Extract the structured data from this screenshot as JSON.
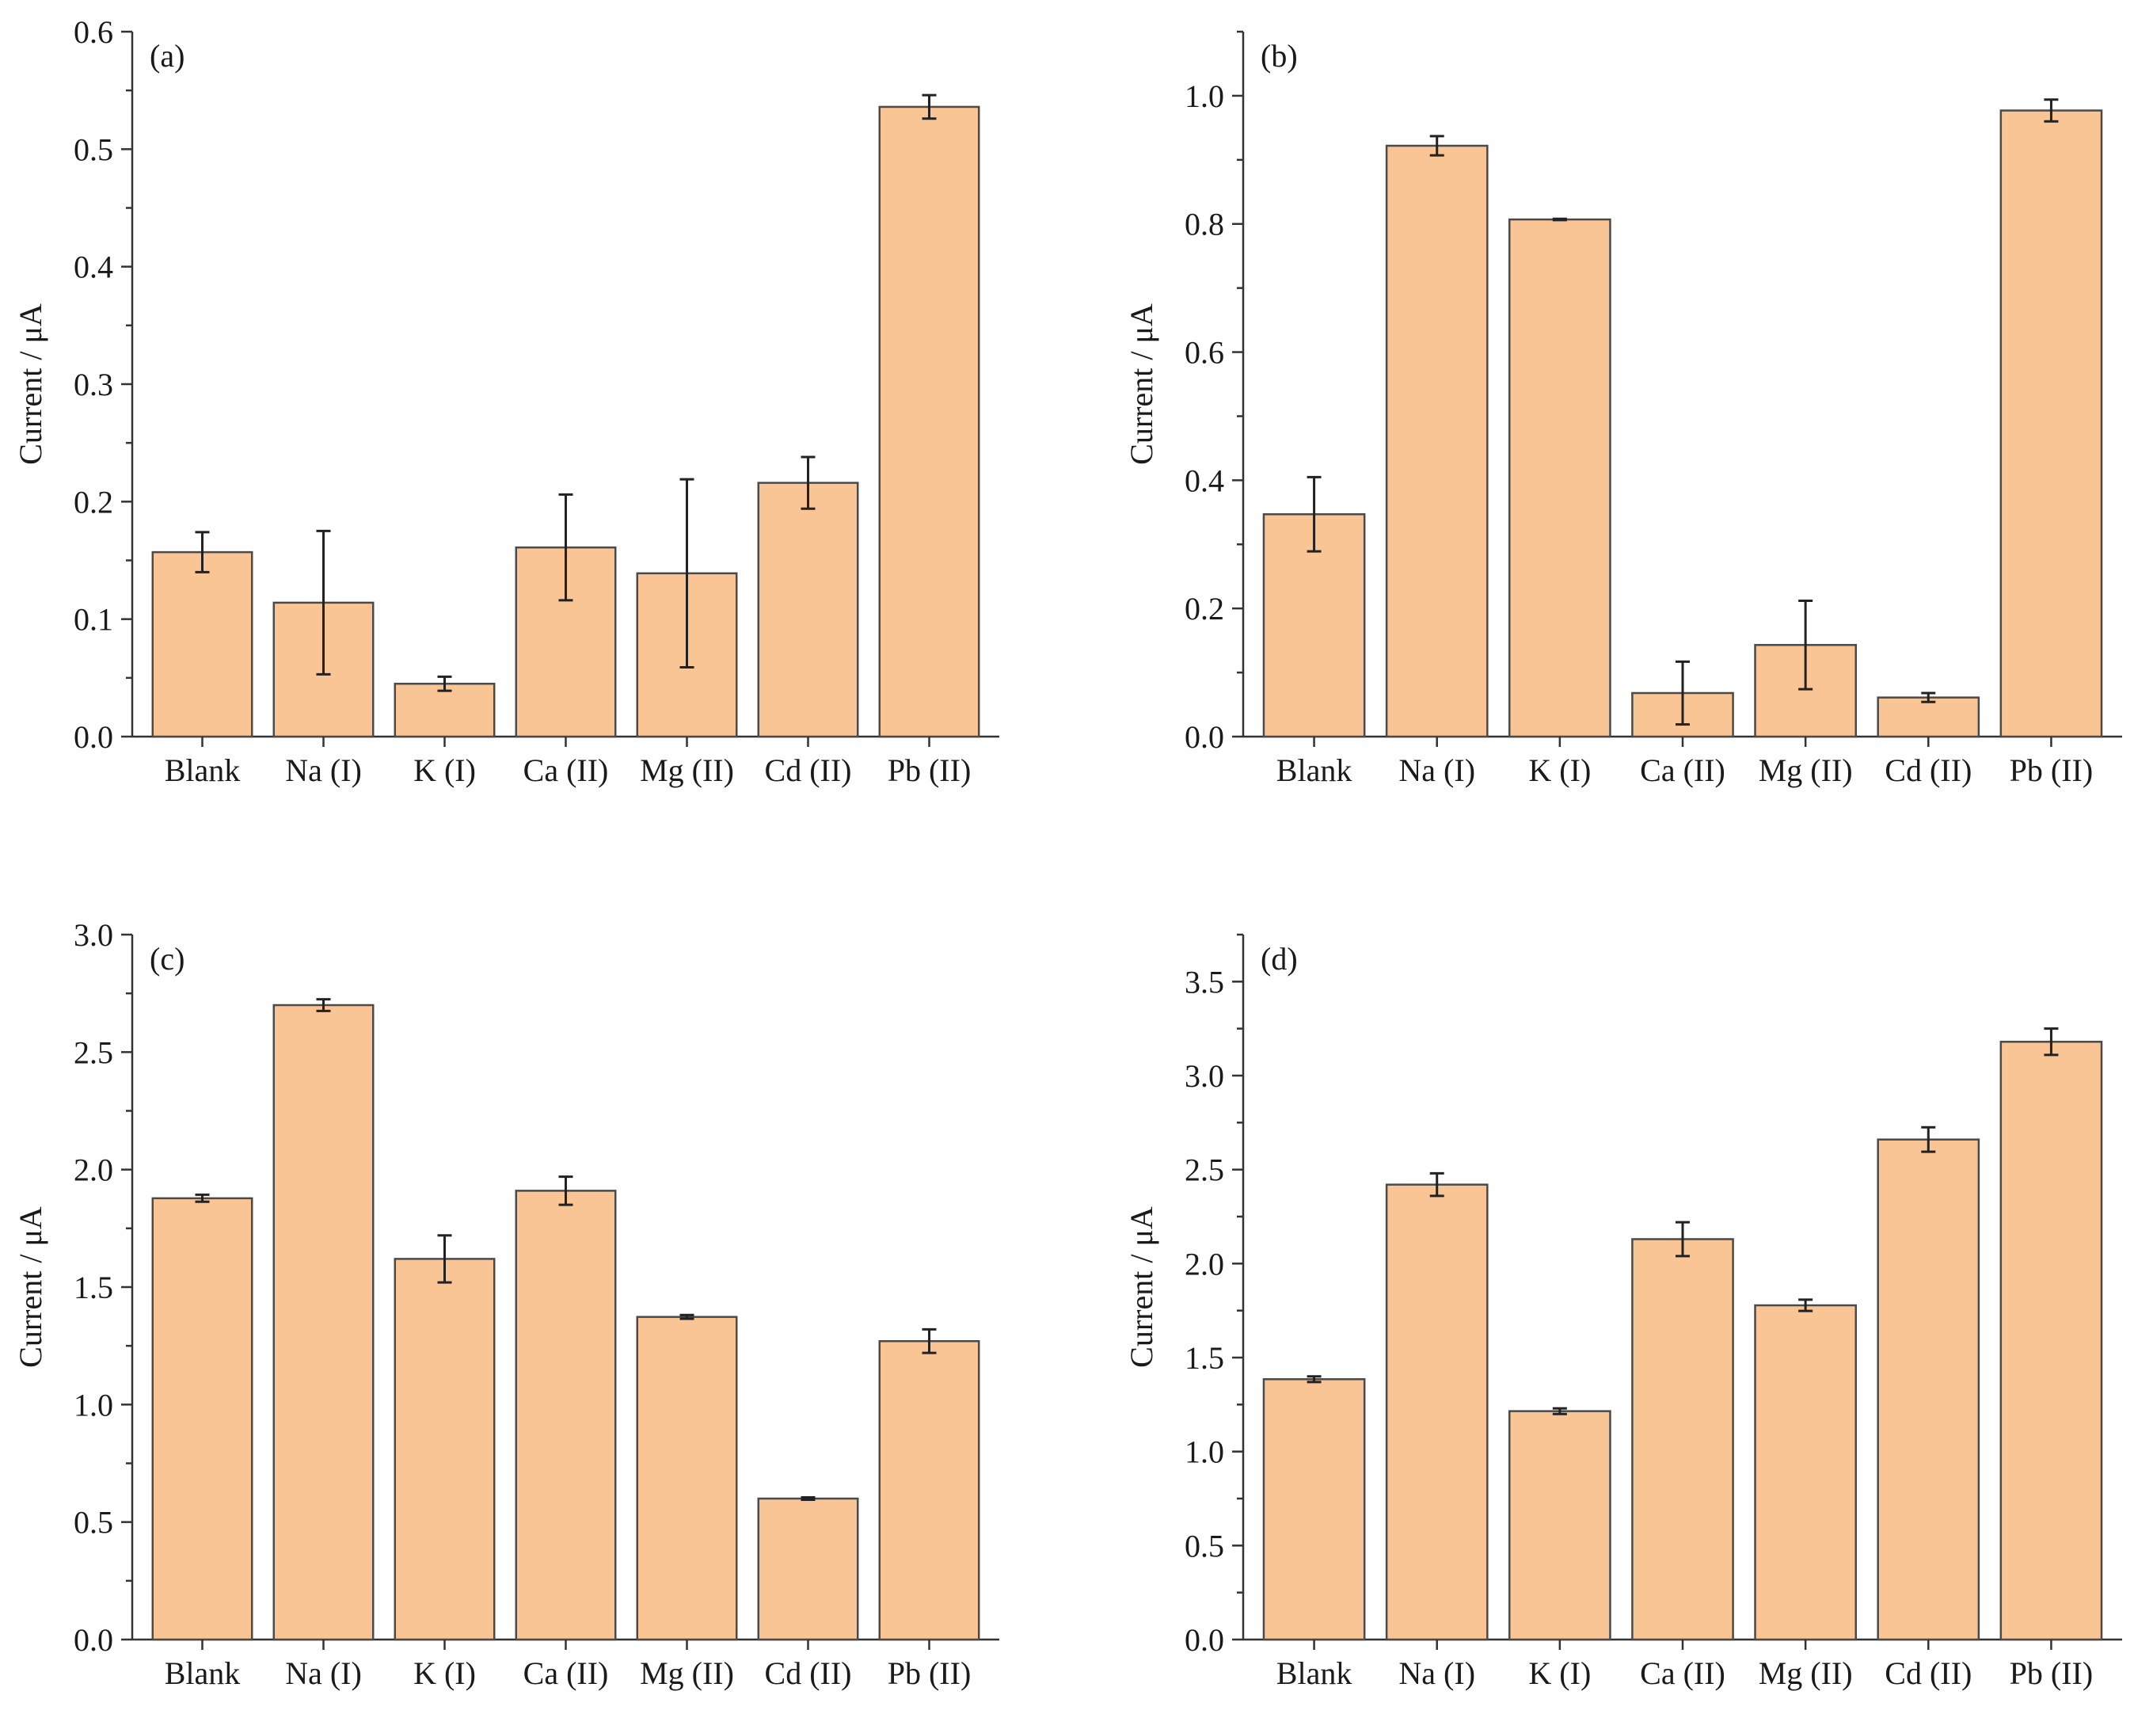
{
  "figure": {
    "bar_color": "#f9c595",
    "edge_color": "#4a4a4a",
    "axis_color": "#333333"
  },
  "chart_data": [
    {
      "type": "bar",
      "panel": "(a)",
      "title": "",
      "xlabel": "",
      "ylabel": "Current / μA",
      "ylim": [
        0,
        0.6
      ],
      "yticks": [
        "0.0",
        "0.1",
        "0.2",
        "0.3",
        "0.4",
        "0.5",
        "0.6"
      ],
      "categories": [
        "Blank",
        "Na (I)",
        "K (I)",
        "Ca (II)",
        "Mg (II)",
        "Cd (II)",
        "Pb (II)"
      ],
      "values": [
        0.157,
        0.114,
        0.045,
        0.161,
        0.139,
        0.216,
        0.536
      ],
      "errors": [
        0.017,
        0.061,
        0.006,
        0.045,
        0.08,
        0.022,
        0.01
      ]
    },
    {
      "type": "bar",
      "panel": "(b)",
      "title": "",
      "xlabel": "",
      "ylabel": "Current / μA",
      "ylim": [
        0,
        1.1
      ],
      "yticks": [
        "0.0",
        "0.2",
        "0.4",
        "0.6",
        "0.8",
        "1.0"
      ],
      "categories": [
        "Blank",
        "Na (I)",
        "K (I)",
        "Ca (II)",
        "Mg (II)",
        "Cd (II)",
        "Pb (II)"
      ],
      "values": [
        0.347,
        0.922,
        0.807,
        0.068,
        0.143,
        0.061,
        0.977
      ],
      "errors": [
        0.058,
        0.015,
        0.001,
        0.049,
        0.069,
        0.007,
        0.017
      ]
    },
    {
      "type": "bar",
      "panel": "(c)",
      "title": "",
      "xlabel": "",
      "ylabel": "Current / μA",
      "ylim": [
        0,
        3.0
      ],
      "yticks": [
        "0.0",
        "0.5",
        "1.0",
        "1.5",
        "2.0",
        "2.5",
        "3.0"
      ],
      "categories": [
        "Blank",
        "Na (I)",
        "K (I)",
        "Ca (II)",
        "Mg (II)",
        "Cd (II)",
        "Pb (II)"
      ],
      "values": [
        1.878,
        2.7,
        1.62,
        1.91,
        1.373,
        0.6,
        1.27
      ],
      "errors": [
        0.015,
        0.025,
        0.1,
        0.06,
        0.008,
        0.005,
        0.05
      ]
    },
    {
      "type": "bar",
      "panel": "(d)",
      "title": "",
      "xlabel": "",
      "ylabel": "Current / μA",
      "ylim": [
        0,
        3.75
      ],
      "yticks": [
        "0.0",
        "0.5",
        "1.0",
        "1.5",
        "2.0",
        "2.5",
        "3.0",
        "3.5"
      ],
      "categories": [
        "Blank",
        "Na (I)",
        "K (I)",
        "Ca (II)",
        "Mg (II)",
        "Cd (II)",
        "Pb (II)"
      ],
      "values": [
        1.385,
        2.42,
        1.215,
        2.13,
        1.778,
        2.66,
        3.18
      ],
      "errors": [
        0.015,
        0.06,
        0.015,
        0.09,
        0.03,
        0.065,
        0.07
      ]
    }
  ]
}
